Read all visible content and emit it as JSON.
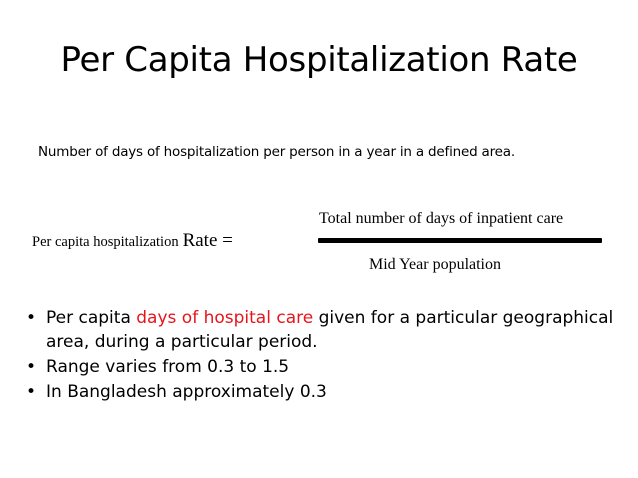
{
  "slide": {
    "title": "Per Capita Hospitalization Rate",
    "definition": "Number of days of hospitalization per person in a year in a defined area.",
    "formula": {
      "label_small": "Per capita hospitalization",
      "label_big": "Rate =",
      "numerator": "Total number of days of inpatient care",
      "denominator": "Mid Year population"
    },
    "bullets": [
      {
        "prefix": "Per capita ",
        "highlight": "days of hospital care",
        "suffix": " given for a particular geographical area, during a particular period."
      },
      {
        "text": "Range varies from 0.3 to 1.5"
      },
      {
        "text": "In Bangladesh approximately 0.3"
      }
    ],
    "colors": {
      "highlight": "#e8141b",
      "text": "#000000",
      "background": "#ffffff"
    }
  }
}
